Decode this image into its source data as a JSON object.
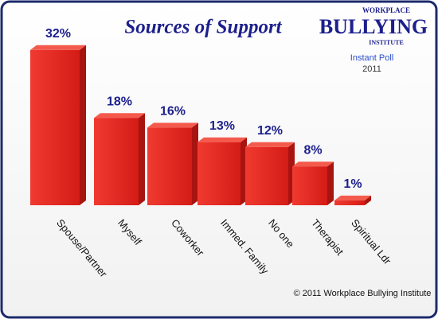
{
  "chart_data": {
    "type": "bar",
    "title": "Sources of Support",
    "logo": {
      "top": "WORKPLACE",
      "main": "BULLYING",
      "bottom": "INSTITUTE"
    },
    "subtitle": "Instant Poll",
    "year": "2011",
    "footer": "© 2011 Workplace Bullying Institute",
    "categories": [
      "Spouse/Partner",
      "Myself",
      "Coworker",
      "Immed. Family",
      "No one",
      "Therapist",
      "Spiritual Ldr"
    ],
    "values": [
      32,
      18,
      16,
      13,
      12,
      8,
      1
    ],
    "value_labels": [
      "32%",
      "18%",
      "16%",
      "13%",
      "12%",
      "8%",
      "1%"
    ],
    "color": "#e0201c"
  }
}
